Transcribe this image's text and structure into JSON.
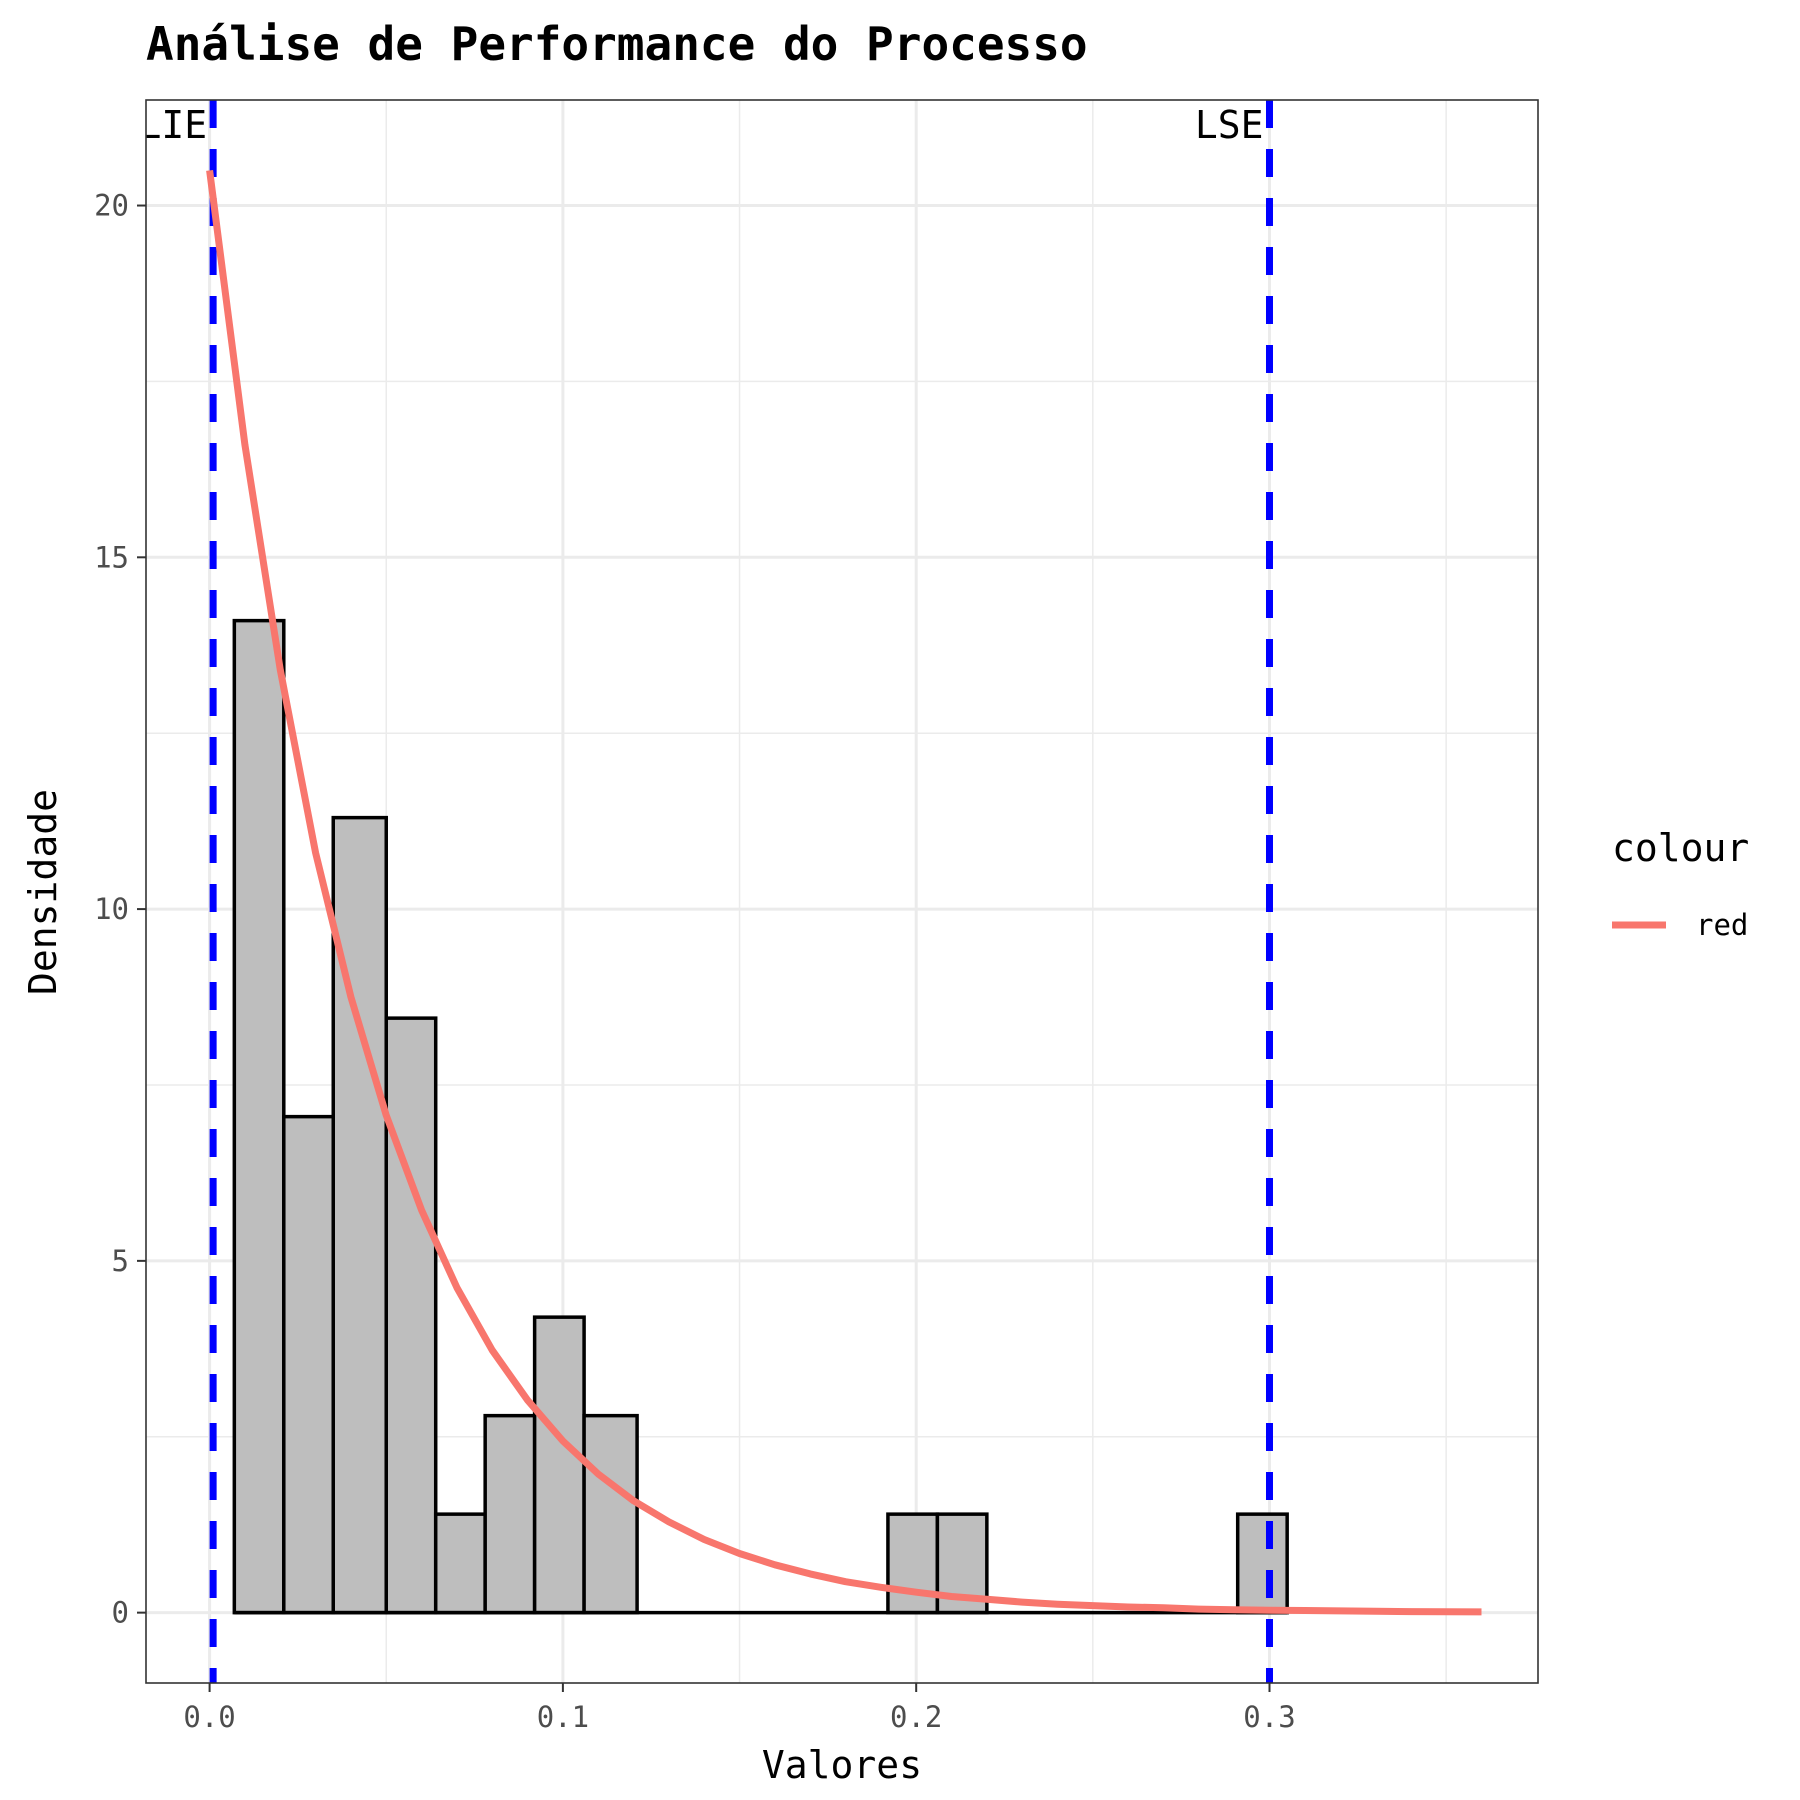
{
  "chart_data": {
    "type": "histogram",
    "title": "Análise de Performance do Processo",
    "xlabel": "Valores",
    "ylabel": "Densidade",
    "xlim": [
      -0.018,
      0.376
    ],
    "ylim": [
      -1.0,
      21.5
    ],
    "x_ticks": [
      0.0,
      0.1,
      0.2,
      0.3
    ],
    "x_tick_labels": [
      "0.0",
      "0.1",
      "0.2",
      "0.3"
    ],
    "y_ticks": [
      0,
      5,
      10,
      15,
      20
    ],
    "y_tick_labels": [
      "0",
      "5",
      "10",
      "15",
      "20"
    ],
    "grid": true,
    "histogram": {
      "fill": "#bebebe",
      "stroke": "#000000",
      "bins": [
        {
          "x0": 0.007,
          "x1": 0.021,
          "density": 14.1
        },
        {
          "x0": 0.021,
          "x1": 0.035,
          "density": 7.05
        },
        {
          "x0": 0.035,
          "x1": 0.05,
          "density": 11.3
        },
        {
          "x0": 0.05,
          "x1": 0.064,
          "density": 8.45
        },
        {
          "x0": 0.064,
          "x1": 0.078,
          "density": 1.4
        },
        {
          "x0": 0.078,
          "x1": 0.092,
          "density": 2.8
        },
        {
          "x0": 0.092,
          "x1": 0.106,
          "density": 4.2
        },
        {
          "x0": 0.106,
          "x1": 0.121,
          "density": 2.8
        },
        {
          "x0": 0.121,
          "x1": 0.135,
          "density": 0
        },
        {
          "x0": 0.135,
          "x1": 0.149,
          "density": 0
        },
        {
          "x0": 0.149,
          "x1": 0.163,
          "density": 0
        },
        {
          "x0": 0.163,
          "x1": 0.177,
          "density": 0
        },
        {
          "x0": 0.177,
          "x1": 0.192,
          "density": 0
        },
        {
          "x0": 0.192,
          "x1": 0.206,
          "density": 1.4
        },
        {
          "x0": 0.206,
          "x1": 0.22,
          "density": 1.4
        },
        {
          "x0": 0.22,
          "x1": 0.234,
          "density": 0
        },
        {
          "x0": 0.234,
          "x1": 0.248,
          "density": 0
        },
        {
          "x0": 0.248,
          "x1": 0.262,
          "density": 0
        },
        {
          "x0": 0.262,
          "x1": 0.277,
          "density": 0
        },
        {
          "x0": 0.277,
          "x1": 0.291,
          "density": 0
        },
        {
          "x0": 0.291,
          "x1": 0.305,
          "density": 1.4
        }
      ]
    },
    "density_curve": {
      "name": "red",
      "color": "#F8766D",
      "x": [
        0.0,
        0.01,
        0.02,
        0.03,
        0.04,
        0.05,
        0.06,
        0.07,
        0.08,
        0.09,
        0.1,
        0.11,
        0.12,
        0.13,
        0.14,
        0.15,
        0.16,
        0.17,
        0.18,
        0.19,
        0.2,
        0.21,
        0.22,
        0.23,
        0.24,
        0.25,
        0.26,
        0.27,
        0.28,
        0.29,
        0.3,
        0.31,
        0.32,
        0.33,
        0.34,
        0.35,
        0.36
      ],
      "y": [
        20.5,
        16.6,
        13.4,
        10.8,
        8.75,
        7.07,
        5.72,
        4.62,
        3.73,
        3.02,
        2.44,
        1.97,
        1.59,
        1.29,
        1.04,
        0.84,
        0.68,
        0.55,
        0.44,
        0.36,
        0.29,
        0.23,
        0.19,
        0.15,
        0.12,
        0.1,
        0.08,
        0.07,
        0.05,
        0.04,
        0.035,
        0.03,
        0.025,
        0.02,
        0.015,
        0.012,
        0.01
      ]
    },
    "spec_limits": [
      {
        "label": "LIE",
        "x": 0.001,
        "color": "#0000FF"
      },
      {
        "label": "LSE",
        "x": 0.3,
        "color": "#0000FF"
      }
    ],
    "legend": {
      "title": "colour",
      "position": "right",
      "entries": [
        {
          "label": "red",
          "color": "#F8766D"
        }
      ]
    }
  }
}
